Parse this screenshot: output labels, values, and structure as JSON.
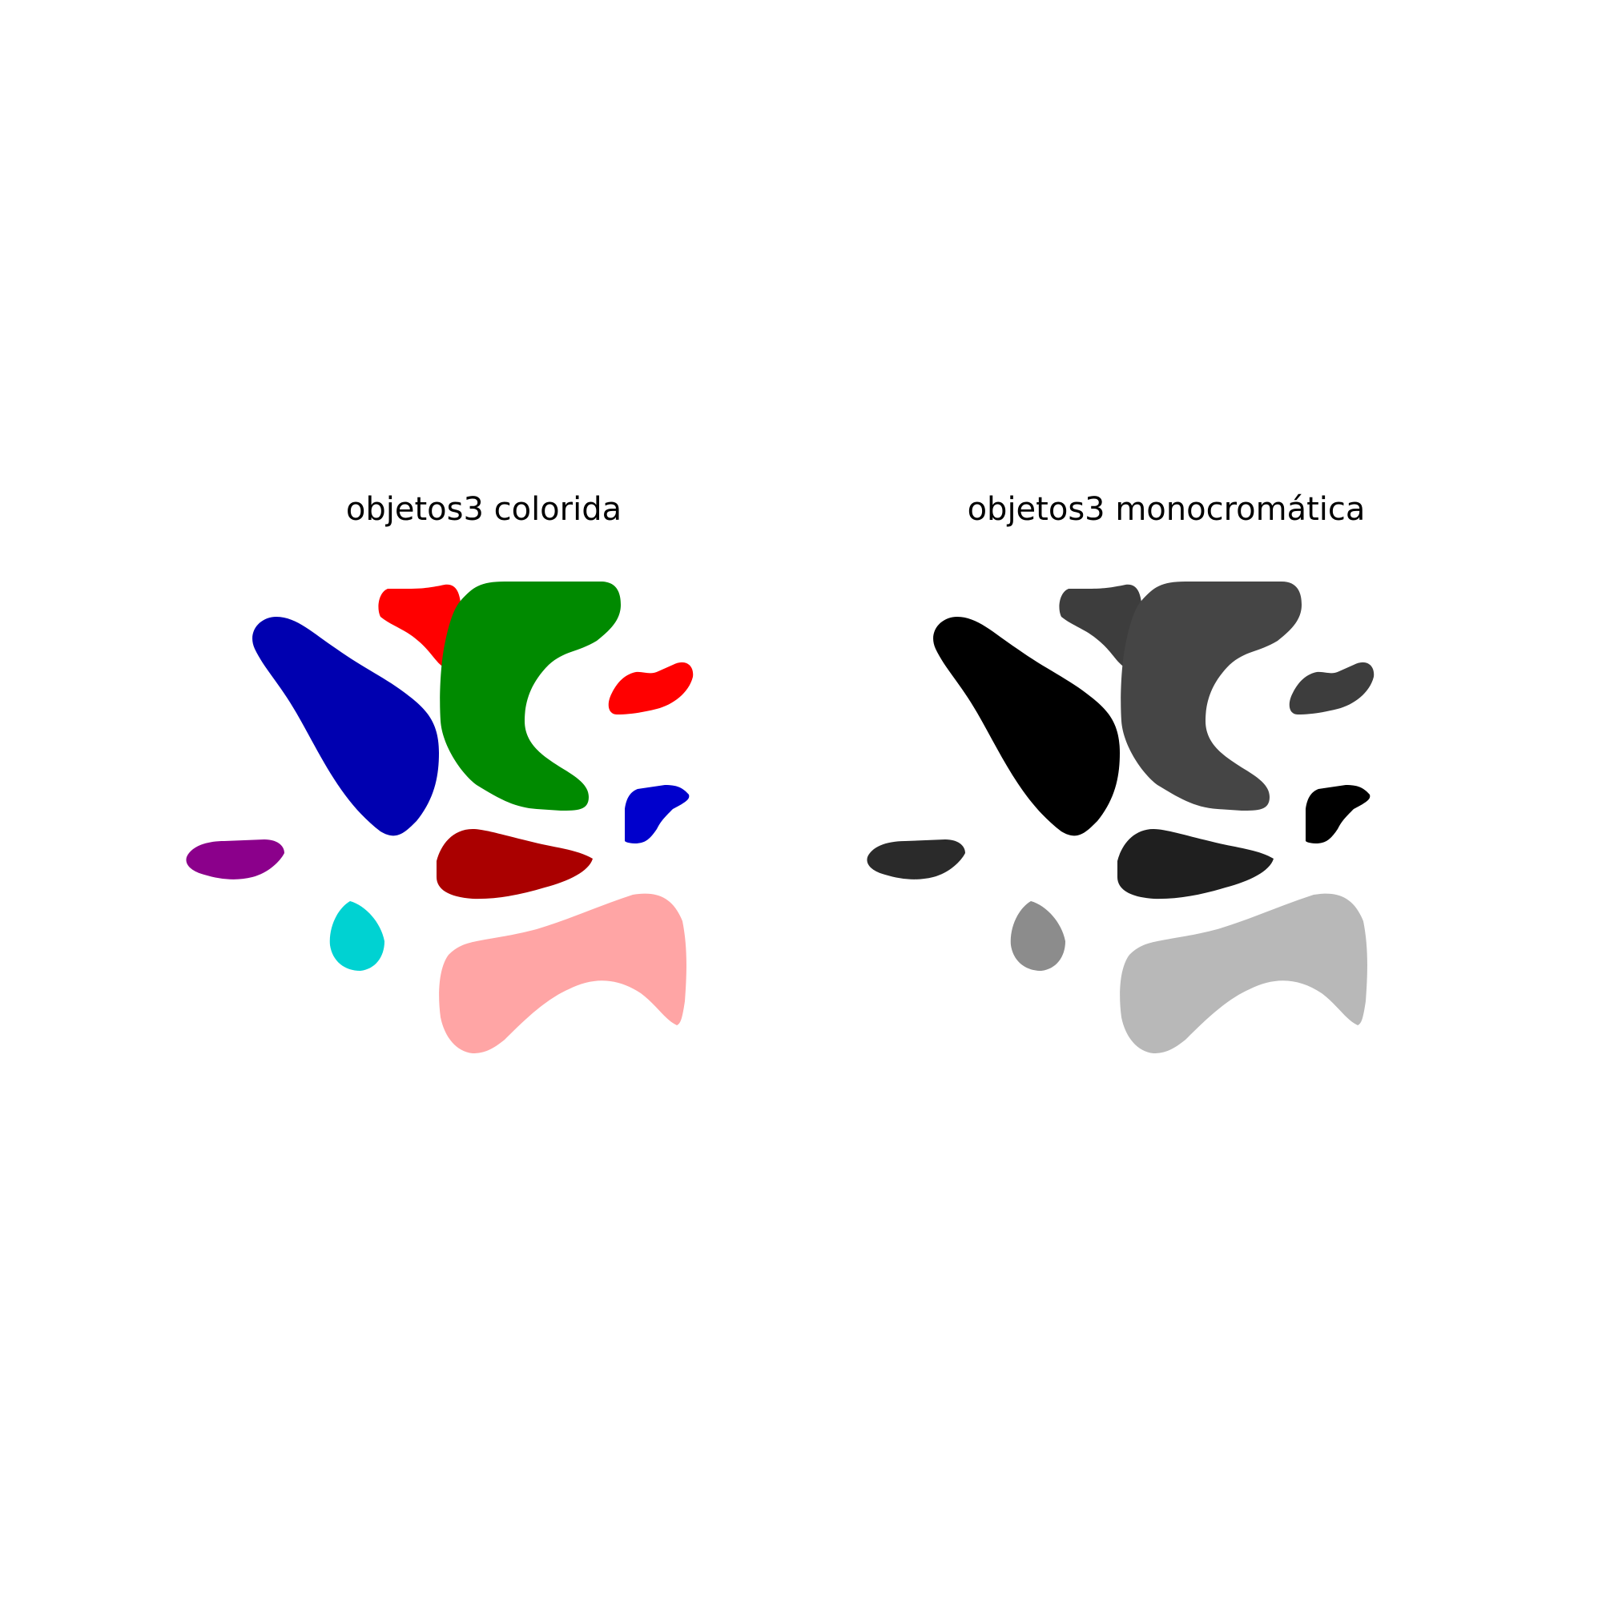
{
  "figure": {
    "panels": [
      {
        "id": "colored",
        "title": "objetos3 colorida",
        "objects": [
          {
            "name": "large-left-blob",
            "color": "#0000B0"
          },
          {
            "name": "small-top-red-blob",
            "color": "#FF0000"
          },
          {
            "name": "large-c-shaped-blob",
            "color": "#008A00"
          },
          {
            "name": "small-right-red-blob",
            "color": "#FF0000"
          },
          {
            "name": "small-right-blue-blob",
            "color": "#0000CC"
          },
          {
            "name": "small-left-purple-blob",
            "color": "#8B008B"
          },
          {
            "name": "center-dark-red-blob",
            "color": "#AA0000"
          },
          {
            "name": "small-cyan-drop",
            "color": "#00D2D2"
          },
          {
            "name": "large-bottom-pink-blob",
            "color": "#FFA5A5"
          }
        ]
      },
      {
        "id": "monochrome",
        "title": "objetos3 monocromática",
        "objects": [
          {
            "name": "large-left-blob",
            "color": "#000000"
          },
          {
            "name": "small-top-red-blob",
            "color": "#3D3D3D"
          },
          {
            "name": "large-c-shaped-blob",
            "color": "#454545"
          },
          {
            "name": "small-right-red-blob",
            "color": "#3D3D3D"
          },
          {
            "name": "small-right-blue-blob",
            "color": "#000000"
          },
          {
            "name": "small-left-purple-blob",
            "color": "#2A2A2A"
          },
          {
            "name": "center-dark-red-blob",
            "color": "#1F1F1F"
          },
          {
            "name": "small-cyan-drop",
            "color": "#8C8C8C"
          },
          {
            "name": "large-bottom-pink-blob",
            "color": "#B8B8B8"
          }
        ]
      }
    ]
  }
}
